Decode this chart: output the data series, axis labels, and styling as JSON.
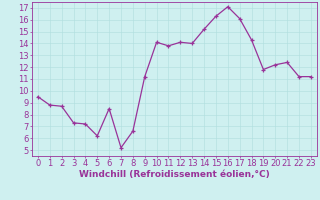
{
  "x": [
    0,
    1,
    2,
    3,
    4,
    5,
    6,
    7,
    8,
    9,
    10,
    11,
    12,
    13,
    14,
    15,
    16,
    17,
    18,
    19,
    20,
    21,
    22,
    23
  ],
  "y": [
    9.5,
    8.8,
    8.7,
    7.3,
    7.2,
    6.2,
    8.5,
    5.2,
    6.6,
    11.2,
    14.1,
    13.8,
    14.1,
    14.0,
    15.2,
    16.3,
    17.1,
    16.1,
    14.3,
    11.8,
    12.2,
    12.4,
    11.2,
    11.2
  ],
  "line_color": "#993399",
  "marker": "+",
  "marker_size": 3,
  "marker_color": "#993399",
  "line_width": 0.9,
  "xlabel": "Windchill (Refroidissement éolien,°C)",
  "xlabel_fontsize": 6.5,
  "ylabel_ticks": [
    5,
    6,
    7,
    8,
    9,
    10,
    11,
    12,
    13,
    14,
    15,
    16,
    17
  ],
  "xlim": [
    -0.5,
    23.5
  ],
  "ylim": [
    4.5,
    17.5
  ],
  "bg_color": "#cff0f0",
  "grid_color": "#b0dede",
  "tick_fontsize": 6.0
}
